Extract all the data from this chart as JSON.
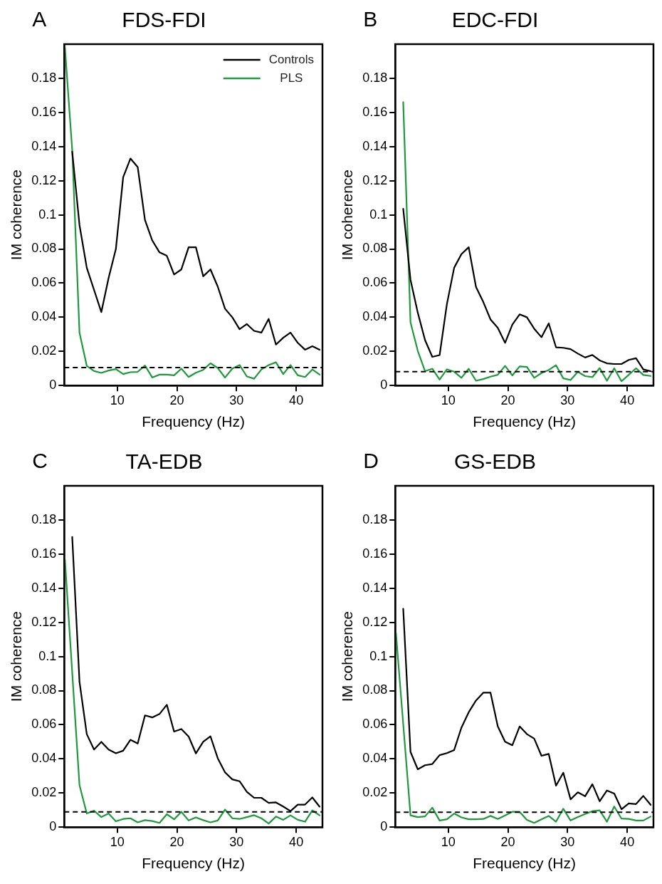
{
  "chart_data": [
    {
      "type": "line",
      "title": "FDS-FDI",
      "annotations": [
        "A"
      ],
      "xlabel": "Frequency (Hz)",
      "ylabel": "IM coherence",
      "x": [
        1.22,
        2.44,
        3.66,
        4.88,
        6.1,
        7.32,
        8.54,
        9.76,
        10.98,
        12.2,
        13.42,
        14.64,
        15.86,
        17.08,
        18.3,
        19.52,
        20.74,
        21.96,
        23.18,
        24.4,
        25.62,
        26.84,
        28.06,
        29.28,
        30.5,
        31.72,
        32.94,
        34.16,
        35.38,
        36.6,
        37.82,
        39.04,
        40.26,
        41.48,
        42.7,
        43.92
      ],
      "series": [
        {
          "name": "Controls",
          "color": "#000000",
          "values": [
            null,
            0.137,
            0.094,
            0.069,
            0.056,
            0.043,
            0.063,
            0.08,
            0.122,
            0.133,
            0.128,
            0.097,
            0.085,
            0.078,
            0.076,
            0.065,
            0.068,
            0.081,
            0.081,
            0.064,
            0.068,
            0.058,
            0.045,
            0.04,
            0.033,
            0.036,
            0.032,
            0.031,
            0.039,
            0.024,
            0.028,
            0.031,
            0.025,
            0.021,
            0.023,
            0.021
          ]
        },
        {
          "name": "PLS",
          "color": "#1e9a3c",
          "values": [
            0.198,
            0.138,
            0.031,
            0.0115,
            0.0085,
            0.0074,
            0.0088,
            0.0096,
            0.0067,
            0.0078,
            0.008,
            0.0117,
            0.0047,
            0.0064,
            0.0064,
            0.006,
            0.0099,
            0.005,
            0.0075,
            0.0092,
            0.013,
            0.0103,
            0.0046,
            0.0099,
            0.012,
            0.0053,
            0.004,
            0.0094,
            0.012,
            0.0136,
            0.0067,
            0.012,
            0.006,
            0.005,
            0.0094,
            0.0064
          ]
        }
      ],
      "ref_lines": [
        {
          "axis": "y",
          "value": 0.0105,
          "color": "#000000",
          "line_style": "dashed"
        }
      ],
      "xlim": [
        1.1,
        44.4
      ],
      "xticks": [
        10,
        20,
        30,
        40
      ],
      "ylim": [
        0,
        0.2
      ],
      "yticks": [
        0,
        0.02,
        0.04,
        0.06,
        0.08,
        0.1,
        0.12,
        0.14,
        0.16,
        0.18
      ],
      "grid": false,
      "legend": "top right",
      "marker": "none",
      "line_style": "solid"
    },
    {
      "type": "line",
      "title": "EDC-FDI",
      "annotations": [
        "B"
      ],
      "xlabel": "Frequency (Hz)",
      "ylabel": "IM coherence",
      "x": [
        2.44,
        3.66,
        4.88,
        6.1,
        7.32,
        8.54,
        9.76,
        10.98,
        12.2,
        13.42,
        14.64,
        15.86,
        17.08,
        18.3,
        19.52,
        20.74,
        21.96,
        23.18,
        24.4,
        25.62,
        26.84,
        28.06,
        29.28,
        30.5,
        31.72,
        32.94,
        34.16,
        35.38,
        36.6,
        37.82,
        39.04,
        40.26,
        41.48,
        42.7,
        43.92
      ],
      "series": [
        {
          "color": "#000000",
          "values": [
            0.1035,
            0.062,
            0.0427,
            0.0266,
            0.0168,
            0.0178,
            0.0476,
            0.069,
            0.077,
            0.081,
            0.0578,
            0.049,
            0.0387,
            0.0338,
            0.025,
            0.0357,
            0.0417,
            0.04,
            0.0333,
            0.0283,
            0.0364,
            0.0224,
            0.0221,
            0.0213,
            0.0187,
            0.0164,
            0.0179,
            0.0147,
            0.013,
            0.0126,
            0.0126,
            0.015,
            0.016,
            0.0094,
            0.0084
          ]
        },
        {
          "color": "#1e9a3c",
          "values": [
            0.166,
            0.037,
            0.0203,
            0.0084,
            0.0098,
            0.0035,
            0.0095,
            0.0081,
            0.0045,
            0.0098,
            0.0028,
            0.0038,
            0.0052,
            0.0063,
            0.0115,
            0.0059,
            0.0112,
            0.0109,
            0.0045,
            0.0073,
            0.0091,
            0.0119,
            0.0042,
            0.0032,
            0.008,
            0.0055,
            0.0049,
            0.0102,
            0.0028,
            0.0101,
            0.0025,
            0.0063,
            0.0101,
            0.0062,
            0.0056
          ]
        }
      ],
      "ref_lines": [
        {
          "axis": "y",
          "value": 0.0081,
          "color": "#000000",
          "line_style": "dashed"
        }
      ],
      "xlim": [
        1.1,
        44.4
      ],
      "xticks": [
        10,
        20,
        30,
        40
      ],
      "ylim": [
        0,
        0.2
      ],
      "yticks": [
        0,
        0.02,
        0.04,
        0.06,
        0.08,
        0.1,
        0.12,
        0.14,
        0.16,
        0.18
      ],
      "grid": false,
      "marker": "none",
      "line_style": "solid"
    },
    {
      "type": "line",
      "title": "TA-EDB",
      "annotations": [
        "C"
      ],
      "xlabel": "Frequency (Hz)",
      "ylabel": "IM coherence",
      "x": [
        1.22,
        2.44,
        3.66,
        4.88,
        6.1,
        7.32,
        8.54,
        9.76,
        10.98,
        12.2,
        13.42,
        14.64,
        15.86,
        17.08,
        18.3,
        19.52,
        20.74,
        21.96,
        23.18,
        24.4,
        25.62,
        26.84,
        28.06,
        29.28,
        30.5,
        31.72,
        32.94,
        34.16,
        35.38,
        36.6,
        37.82,
        39.04,
        40.26,
        41.48,
        42.7,
        43.92
      ],
      "series": [
        {
          "color": "#000000",
          "values": [
            null,
            0.17,
            0.0852,
            0.0545,
            0.0455,
            0.05,
            0.0455,
            0.0433,
            0.0448,
            0.0512,
            0.049,
            0.0655,
            0.0643,
            0.0663,
            0.0717,
            0.056,
            0.0575,
            0.0531,
            0.0432,
            0.05,
            0.0532,
            0.0404,
            0.0321,
            0.028,
            0.0269,
            0.0207,
            0.0172,
            0.0172,
            0.0142,
            0.0145,
            0.0121,
            0.0094,
            0.0132,
            0.0132,
            0.0174,
            0.012
          ]
        },
        {
          "color": "#1e9a3c",
          "values": [
            0.1566,
            0.0906,
            0.0246,
            0.008,
            0.0097,
            0.0059,
            0.008,
            0.0034,
            0.0048,
            0.0052,
            0.0028,
            0.0041,
            0.0036,
            0.0025,
            0.0076,
            0.0046,
            0.009,
            0.0039,
            0.0057,
            0.0041,
            0.0028,
            0.0039,
            0.0103,
            0.0052,
            0.0048,
            0.0059,
            0.007,
            0.0052,
            0.0021,
            0.0062,
            0.0043,
            0.0069,
            0.0043,
            0.0032,
            0.0098,
            0.0069
          ]
        }
      ],
      "ref_lines": [
        {
          "axis": "y",
          "value": 0.009,
          "color": "#000000",
          "line_style": "dashed"
        }
      ],
      "xlim": [
        1.1,
        44.4
      ],
      "xticks": [
        10,
        20,
        30,
        40
      ],
      "ylim": [
        0,
        0.2
      ],
      "yticks": [
        0,
        0.02,
        0.04,
        0.06,
        0.08,
        0.1,
        0.12,
        0.14,
        0.16,
        0.18
      ],
      "grid": false,
      "marker": "none",
      "line_style": "solid"
    },
    {
      "type": "line",
      "title": "GS-EDB",
      "annotations": [
        "D"
      ],
      "xlabel": "Frequency (Hz)",
      "ylabel": "IM coherence",
      "x": [
        1.22,
        2.44,
        3.66,
        4.88,
        6.1,
        7.32,
        8.54,
        9.76,
        10.98,
        12.2,
        13.42,
        14.64,
        15.86,
        17.08,
        18.3,
        19.52,
        20.74,
        21.96,
        23.18,
        24.4,
        25.62,
        26.84,
        28.06,
        29.28,
        30.5,
        31.72,
        32.94,
        34.16,
        35.38,
        36.6,
        37.82,
        39.04,
        40.26,
        41.48,
        42.7,
        43.92
      ],
      "series": [
        {
          "color": "#000000",
          "values": [
            null,
            0.128,
            0.0441,
            0.0339,
            0.0363,
            0.037,
            0.0422,
            0.0434,
            0.0452,
            0.0583,
            0.0673,
            0.0742,
            0.0788,
            0.0788,
            0.059,
            0.0501,
            0.048,
            0.059,
            0.0545,
            0.0519,
            0.0418,
            0.0429,
            0.0243,
            0.0319,
            0.0163,
            0.0204,
            0.0181,
            0.0252,
            0.0152,
            0.0215,
            0.0197,
            0.0105,
            0.0139,
            0.0135,
            0.0183,
            0.0131
          ]
        },
        {
          "color": "#1e9a3c",
          "values": [
            0.1138,
            0.0604,
            0.0069,
            0.0059,
            0.0063,
            0.0114,
            0.0039,
            0.0046,
            0.008,
            0.0057,
            0.0046,
            0.0046,
            0.0048,
            0.0066,
            0.0048,
            0.0069,
            0.009,
            0.009,
            0.0043,
            0.0025,
            0.0046,
            0.0066,
            0.0032,
            0.0108,
            0.0039,
            0.0059,
            0.0077,
            0.0094,
            0.0098,
            0.0032,
            0.0121,
            0.005,
            0.0048,
            0.0039,
            0.0039,
            0.0062
          ]
        }
      ],
      "ref_lines": [
        {
          "axis": "y",
          "value": 0.0087,
          "color": "#000000",
          "line_style": "dashed"
        }
      ],
      "xlim": [
        1.1,
        44.4
      ],
      "xticks": [
        10,
        20,
        30,
        40
      ],
      "ylim": [
        0,
        0.2
      ],
      "yticks": [
        0,
        0.02,
        0.04,
        0.06,
        0.08,
        0.1,
        0.12,
        0.14,
        0.16,
        0.18
      ],
      "grid": false,
      "marker": "none",
      "line_style": "solid"
    }
  ]
}
